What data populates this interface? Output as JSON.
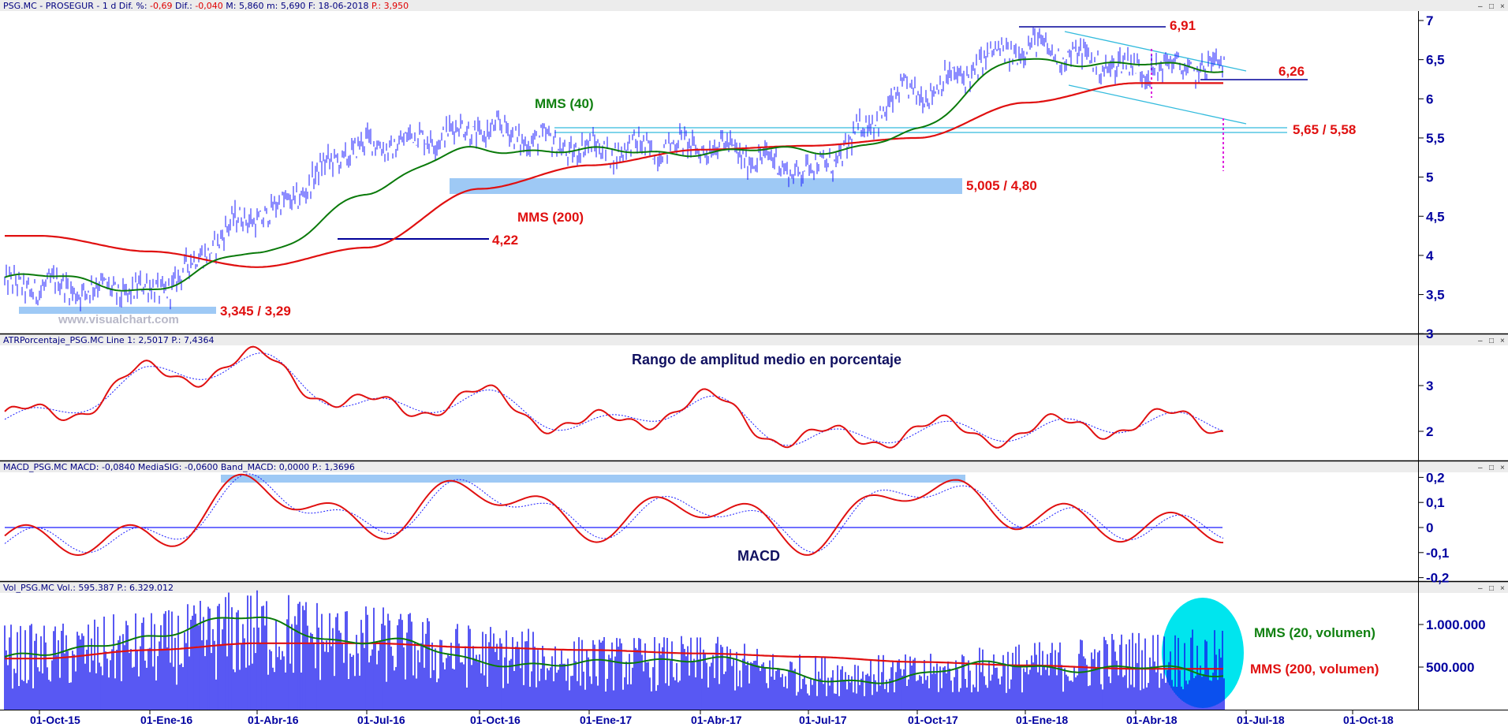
{
  "colors": {
    "price": "#1a1aff",
    "mms40": "#0a7a0a",
    "mms200": "#e01010",
    "zone": "#9ec9f5",
    "channel": "#33bbdd",
    "atr": "#e01010",
    "atr_signal": "#1a1aff",
    "macd": "#e01010",
    "macd_signal": "#1a1aff",
    "volume": "#1010ee",
    "volume_highlight": "#00e5ee",
    "axis_text": "#0000a0"
  },
  "panels": {
    "price": {
      "header_prefix": "PSG.MC - PROSEGUR - 1 d Dif. %: ",
      "header_dif_pct": "-0,69",
      "header_dif_label": " Dif.: ",
      "header_dif": "-0,040",
      "header_rest": " M: 5,860 m: 5,690 F: 18-06-2018 ",
      "header_p": "P.: 3,950",
      "y_ticks": [
        "7",
        "6,5",
        "6",
        "5,5",
        "5",
        "4,5",
        "4",
        "3,5",
        "3"
      ],
      "watermark": "www.visualchart.com"
    },
    "atr": {
      "header": "ATRPorcentaje_PSG.MC Line 1: 2,5017 P.: 7,4364",
      "title": "Rango de amplitud medio en porcentaje",
      "y_ticks": [
        "3",
        "2"
      ]
    },
    "macd": {
      "header": "MACD_PSG.MC MACD: -0,0840 MediaSIG: -0,0600 Band_MACD: 0,0000 P.: 1,3696",
      "title": "MACD",
      "y_ticks": [
        "0,2",
        "0,1",
        "0",
        "-0,1",
        "-0,2"
      ]
    },
    "volume": {
      "header": "Vol_PSG.MC Vol.: 595.387 P.: 6.329.012",
      "y_ticks": [
        "1.000.000",
        "500.000"
      ]
    }
  },
  "annotations": {
    "mms40": "MMS (40)",
    "mms200": "MMS (200)",
    "level_691": "6,91",
    "level_626": "6,26",
    "level_565": "5,65 / 5,58",
    "level_5005": "5,005 / 4,80",
    "level_422": "4,22",
    "level_3345": "3,345 / 3,29",
    "vol_mms20": "MMS (20, volumen)",
    "vol_mms200": "MMS (200, volumen)"
  },
  "window_controls": [
    "–",
    "□",
    "×"
  ],
  "chart_data": [
    {
      "type": "line",
      "x": [
        "01-Oct-15",
        "01-Ene-16",
        "01-Abr-16",
        "01-Jul-16",
        "01-Oct-16",
        "01-Ene-17",
        "01-Abr-17",
        "01-Jul-17",
        "01-Oct-17",
        "01-Ene-18",
        "01-Abr-18",
        "01-Jul-18",
        "01-Oct-18"
      ],
      "ylim": [
        3.0,
        7.0
      ],
      "series": [
        {
          "name": "PSG.MC",
          "values": [
            3.6,
            3.55,
            4.5,
            5.4,
            5.6,
            5.35,
            5.4,
            5.1,
            6.1,
            6.65,
            6.4,
            null,
            null
          ]
        },
        {
          "name": "MMS (40)",
          "values": [
            3.7,
            3.6,
            4.0,
            4.8,
            5.4,
            5.3,
            5.35,
            5.3,
            5.6,
            6.55,
            6.4,
            null,
            null
          ]
        },
        {
          "name": "MMS (200)",
          "values": [
            4.25,
            4.05,
            3.85,
            4.1,
            4.85,
            5.15,
            5.35,
            5.4,
            5.5,
            5.95,
            6.2,
            null,
            null
          ]
        }
      ],
      "levels": [
        6.91,
        6.26,
        5.65,
        5.58,
        5.005,
        4.8,
        4.22,
        3.345,
        3.29
      ]
    },
    {
      "type": "line",
      "x": [
        "01-Oct-15",
        "01-Ene-16",
        "01-Abr-16",
        "01-Jul-16",
        "01-Oct-16",
        "01-Ene-17",
        "01-Abr-17",
        "01-Jul-17",
        "01-Oct-17",
        "01-Ene-18",
        "01-Abr-18",
        "01-Jul-18",
        "01-Oct-18"
      ],
      "ylim": [
        1.5,
        3.5
      ],
      "series": [
        {
          "name": "ATR %",
          "values": [
            2.3,
            3.2,
            3.5,
            2.5,
            2.7,
            2.1,
            2.6,
            1.8,
            2.0,
            2.0,
            2.2,
            null,
            null
          ]
        }
      ]
    },
    {
      "type": "line",
      "x": [
        "01-Oct-15",
        "01-Ene-16",
        "01-Abr-16",
        "01-Jul-16",
        "01-Oct-16",
        "01-Ene-17",
        "01-Abr-17",
        "01-Jul-17",
        "01-Oct-17",
        "01-Ene-18",
        "01-Abr-18",
        "01-Jul-18",
        "01-Oct-18"
      ],
      "ylim": [
        -0.2,
        0.2
      ],
      "series": [
        {
          "name": "MACD",
          "values": [
            -0.05,
            -0.05,
            0.17,
            0.0,
            0.16,
            0.0,
            0.1,
            -0.05,
            0.17,
            0.05,
            0.0,
            null,
            null
          ]
        }
      ]
    },
    {
      "type": "bar",
      "x": [
        "01-Oct-15",
        "01-Ene-16",
        "01-Abr-16",
        "01-Jul-16",
        "01-Oct-16",
        "01-Ene-17",
        "01-Abr-17",
        "01-Jul-17",
        "01-Oct-17",
        "01-Ene-18",
        "01-Abr-18",
        "01-Jul-18",
        "01-Oct-18"
      ],
      "ylim": [
        0,
        1400000
      ],
      "series": [
        {
          "name": "Vol",
          "values": [
            700000,
            800000,
            1000000,
            850000,
            700000,
            600000,
            600000,
            450000,
            450000,
            550000,
            650000,
            null,
            null
          ]
        },
        {
          "name": "MMS (20, volumen)",
          "values": [
            600000,
            900000,
            1050000,
            800000,
            600000,
            500000,
            650000,
            350000,
            400000,
            550000,
            450000,
            null,
            null
          ]
        },
        {
          "name": "MMS (200, volumen)",
          "values": [
            600000,
            700000,
            780000,
            780000,
            730000,
            700000,
            660000,
            620000,
            560000,
            520000,
            480000,
            null,
            null
          ]
        }
      ]
    }
  ]
}
